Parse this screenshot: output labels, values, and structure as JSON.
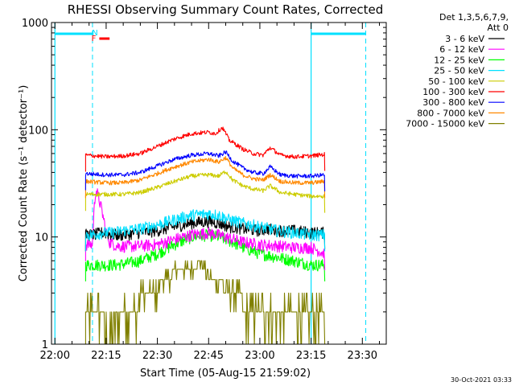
{
  "chart_data": {
    "type": "line",
    "title": "RHESSI Observing Summary Count Rates, Corrected",
    "xlabel": "Start Time (05-Aug-15 21:59:02)",
    "ylabel": "Corrected Count Rate (s⁻¹ detector⁻¹)",
    "y_scale": "log",
    "ylim": [
      1,
      1000
    ],
    "xlim_minutes": [
      -1,
      97
    ],
    "x_ticks": [
      {
        "minute": 0,
        "label": "22:00"
      },
      {
        "minute": 15,
        "label": "22:15"
      },
      {
        "minute": 30,
        "label": "22:30"
      },
      {
        "minute": 45,
        "label": "22:45"
      },
      {
        "minute": 60,
        "label": "23:00"
      },
      {
        "minute": 75,
        "label": "23:15"
      },
      {
        "minute": 90,
        "label": "23:30"
      }
    ],
    "y_ticks": [
      {
        "value": 1,
        "label": "1"
      },
      {
        "value": 10,
        "label": "10"
      },
      {
        "value": 100,
        "label": "100"
      },
      {
        "value": 1000,
        "label": "1000"
      }
    ],
    "legend": {
      "placement": "top-right",
      "header_lines": [
        "Det 1,3,5,6,7,9,",
        "Att 0"
      ]
    },
    "series": [
      {
        "name": "3 - 6 keV",
        "color": "#000000",
        "x": [
          9,
          11,
          14,
          17,
          20,
          25,
          30,
          35,
          40,
          45,
          48,
          51,
          55,
          60,
          62,
          65,
          70,
          75,
          79
        ],
        "y": [
          10.5,
          10.5,
          11,
          10.5,
          10.5,
          11,
          11.5,
          12.5,
          13.5,
          14,
          13.5,
          12.5,
          12,
          11.5,
          12,
          11.5,
          11.5,
          11,
          11
        ]
      },
      {
        "name": "6 - 12 keV",
        "color": "#ff00ff",
        "x": [
          9,
          11,
          12,
          13,
          14,
          15,
          16,
          18,
          20,
          22,
          25,
          30,
          35,
          40,
          45,
          50,
          55,
          60,
          65,
          70,
          75,
          79
        ],
        "y": [
          8.5,
          8.5,
          28,
          22,
          16,
          11,
          9,
          8.3,
          8.2,
          8.2,
          8.3,
          8.5,
          9.5,
          10.5,
          11,
          10,
          9,
          8.5,
          8.3,
          8,
          8,
          7
        ]
      },
      {
        "name": "12 - 25 keV",
        "color": "#00ff00",
        "x": [
          9,
          12,
          15,
          18,
          20,
          25,
          30,
          35,
          40,
          45,
          48,
          52,
          55,
          60,
          65,
          70,
          75,
          79
        ],
        "y": [
          5.5,
          5.5,
          5.5,
          5.5,
          5.6,
          6,
          7,
          8.5,
          10,
          10.5,
          10,
          9,
          8,
          7,
          6.5,
          6,
          5.5,
          5.5
        ]
      },
      {
        "name": "25 - 50 keV",
        "color": "#00e0ff",
        "x": [
          9,
          11,
          14,
          17,
          20,
          25,
          30,
          35,
          40,
          45,
          48,
          51,
          55,
          60,
          65,
          70,
          75,
          79
        ],
        "y": [
          10.5,
          10.5,
          11,
          11,
          11.5,
          12,
          13,
          14.5,
          16,
          16.5,
          16,
          14.5,
          13.5,
          12.5,
          11.5,
          11,
          10.5,
          10.5
        ]
      },
      {
        "name": "50 - 100 keV",
        "color": "#cccc00",
        "x": [
          9,
          15,
          20,
          25,
          30,
          35,
          40,
          45,
          48,
          50,
          52,
          55,
          58,
          61,
          63,
          66,
          70,
          75,
          79
        ],
        "y": [
          25,
          25,
          25,
          26,
          29,
          33,
          37,
          38,
          37,
          41,
          34,
          30,
          28,
          27,
          30,
          26,
          25,
          24,
          24
        ]
      },
      {
        "name": "100 - 300 keV",
        "color": "#ff0000",
        "x": [
          9,
          15,
          20,
          25,
          30,
          35,
          40,
          45,
          47,
          49,
          51,
          55,
          58,
          61,
          63,
          66,
          70,
          75,
          79
        ],
        "y": [
          58,
          56,
          57,
          60,
          70,
          82,
          92,
          95,
          92,
          105,
          80,
          66,
          60,
          58,
          68,
          58,
          56,
          57,
          59
        ]
      },
      {
        "name": "300 - 800 keV",
        "color": "#0000ff",
        "x": [
          9,
          15,
          20,
          25,
          30,
          35,
          40,
          45,
          48,
          50,
          52,
          55,
          58,
          61,
          63,
          66,
          70,
          75,
          79
        ],
        "y": [
          39,
          38,
          38,
          40,
          46,
          53,
          58,
          60,
          57,
          62,
          51,
          44,
          40,
          39,
          45,
          38,
          37,
          37,
          38
        ]
      },
      {
        "name": "800 - 7000 keV",
        "color": "#ff8800",
        "x": [
          9,
          15,
          20,
          25,
          30,
          35,
          40,
          45,
          48,
          50,
          52,
          55,
          58,
          61,
          63,
          66,
          70,
          75,
          79
        ],
        "y": [
          33,
          32,
          32,
          34,
          39,
          45,
          50,
          53,
          50,
          55,
          44,
          38,
          35,
          34,
          38,
          33,
          32,
          32,
          33
        ]
      },
      {
        "name": "7000 - 15000 keV",
        "color": "#808000",
        "x": [
          9,
          14,
          15,
          20,
          24,
          25,
          30,
          31,
          34,
          35,
          40,
          42,
          44,
          45,
          49,
          50,
          54,
          55,
          60,
          65,
          70,
          75,
          79
        ],
        "y": [
          2,
          2,
          1,
          2,
          2,
          3,
          3,
          4,
          4,
          5,
          5,
          6,
          5,
          4,
          4,
          3,
          3,
          2,
          2,
          2,
          2,
          2,
          2
        ]
      }
    ],
    "annotations": {
      "night_bars_minutes": [
        [
          0,
          11
        ],
        [
          75,
          91
        ]
      ],
      "night_bar_color": "#00e0ff",
      "night_dashed_minutes": [
        11,
        91
      ],
      "night_solid_minutes": [
        0,
        75
      ],
      "saa_label": "N",
      "flare_label": "F",
      "flare_bar_minutes": [
        13,
        16
      ],
      "flare_bar_color": "#ff0000"
    }
  },
  "footer": {
    "timestamp": "30-Oct-2021 03:33"
  }
}
